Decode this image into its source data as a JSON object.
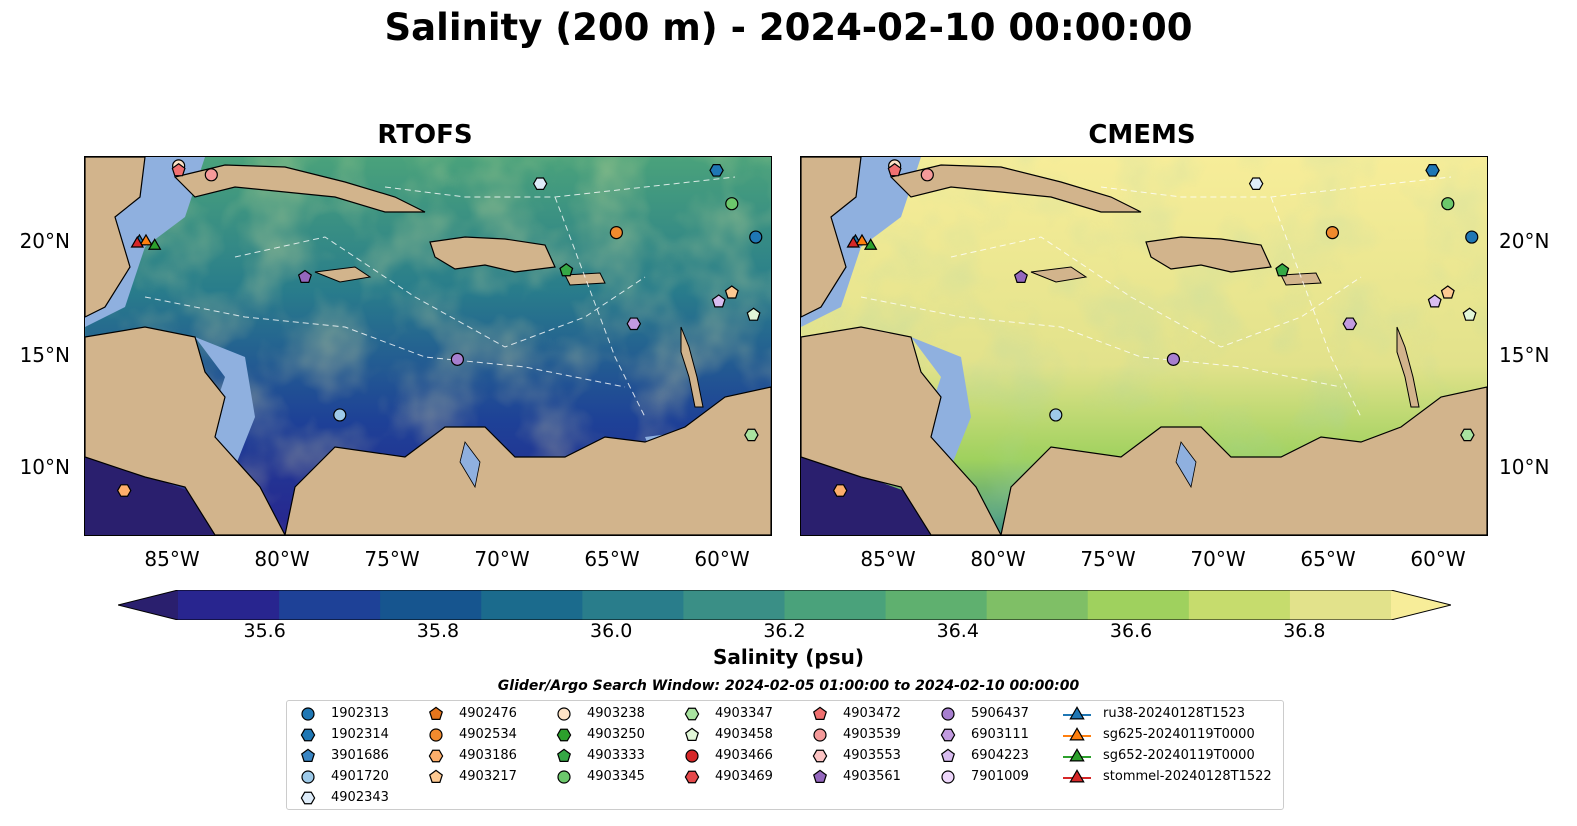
{
  "title": "Salinity (200 m) - 2024-02-10 00:00:00",
  "panels": [
    {
      "title": "RTOFS"
    },
    {
      "title": "CMEMS"
    }
  ],
  "x_ticks": [
    "85°W",
    "80°W",
    "75°W",
    "70°W",
    "65°W",
    "60°W"
  ],
  "y_ticks": [
    "20°N",
    "15°N",
    "10°N"
  ],
  "colorbar": {
    "label": "Salinity (psu)",
    "ticks": [
      "35.6",
      "35.8",
      "36.0",
      "36.2",
      "36.4",
      "36.6",
      "36.8"
    ],
    "colors": [
      "#2a1f6e",
      "#28258f",
      "#1e4197",
      "#16558f",
      "#1b6b8d",
      "#297d8b",
      "#3a8f86",
      "#4aa27b",
      "#5fb06f",
      "#7fbf66",
      "#9fd15e",
      "#c6dc6d",
      "#e2e28b",
      "#f7ed99"
    ]
  },
  "search_window": "Glider/Argo Search Window: 2024-02-05 01:00:00 to 2024-02-10 00:00:00",
  "legend": {
    "col1": [
      {
        "label": "1902313",
        "marker": "circle",
        "color": "#1f77b4"
      },
      {
        "label": "1902314",
        "marker": "hexagon",
        "color": "#1f77b4"
      },
      {
        "label": "3901686",
        "marker": "pentagon",
        "color": "#3a86c4"
      },
      {
        "label": "4901720",
        "marker": "circle",
        "color": "#9ecae9"
      },
      {
        "label": "4902343",
        "marker": "hexagon",
        "color": "#deecf9"
      }
    ],
    "col2": [
      {
        "label": "4902476",
        "marker": "pentagon",
        "color": "#e6751c"
      },
      {
        "label": "4902534",
        "marker": "circle",
        "color": "#f08a2e"
      },
      {
        "label": "4903186",
        "marker": "hexagon",
        "color": "#fdae6b"
      },
      {
        "label": "4903217",
        "marker": "pentagon",
        "color": "#fdc992"
      }
    ],
    "col3": [
      {
        "label": "4903238",
        "marker": "circle",
        "color": "#fde2c5"
      },
      {
        "label": "4903250",
        "marker": "hexagon",
        "color": "#2ca02c"
      },
      {
        "label": "4903333",
        "marker": "pentagon",
        "color": "#35a845"
      },
      {
        "label": "4903345",
        "marker": "circle",
        "color": "#6cc86c"
      }
    ],
    "col4": [
      {
        "label": "4903347",
        "marker": "hexagon",
        "color": "#a9e3a0"
      },
      {
        "label": "4903458",
        "marker": "pentagon",
        "color": "#e2f7d8"
      },
      {
        "label": "4903466",
        "marker": "circle",
        "color": "#d62728"
      },
      {
        "label": "4903469",
        "marker": "hexagon",
        "color": "#e5484a"
      }
    ],
    "col5": [
      {
        "label": "4903472",
        "marker": "pentagon",
        "color": "#f07070"
      },
      {
        "label": "4903539",
        "marker": "circle",
        "color": "#f59a9a"
      },
      {
        "label": "4903553",
        "marker": "hexagon",
        "color": "#fbc3c3"
      },
      {
        "label": "4903561",
        "marker": "pentagon",
        "color": "#9467bd"
      }
    ],
    "col6": [
      {
        "label": "5906437",
        "marker": "circle",
        "color": "#a77fcf"
      },
      {
        "label": "6903111",
        "marker": "hexagon",
        "color": "#c29be0"
      },
      {
        "label": "6904223",
        "marker": "pentagon",
        "color": "#d9bdf0"
      },
      {
        "label": "7901009",
        "marker": "circle",
        "color": "#eed7fb"
      }
    ],
    "col7": [
      {
        "label": "ru38-20240128T1523",
        "marker": "triangle",
        "color": "#1f77b4"
      },
      {
        "label": "sg625-20240119T0000",
        "marker": "triangle",
        "color": "#ff7f0e"
      },
      {
        "label": "sg652-20240119T0000",
        "marker": "triangle",
        "color": "#2ca02c"
      },
      {
        "label": "stommel-20240128T1522",
        "marker": "triangle",
        "color": "#d62728"
      }
    ]
  },
  "chart_data": {
    "type": "heatmap",
    "title": "Salinity (200 m) - 2024-02-10 00:00:00",
    "xlabel": "",
    "ylabel": "",
    "colorbar_label": "Salinity (psu)",
    "color_range": [
      35.5,
      36.9
    ],
    "x_range": [
      -89,
      -57.5
    ],
    "y_range": [
      7,
      24
    ],
    "x_ticks": [
      -85,
      -80,
      -75,
      -70,
      -65,
      -60
    ],
    "y_ticks": [
      20,
      15,
      10
    ],
    "panels": [
      "RTOFS",
      "CMEMS"
    ],
    "markers": [
      {
        "id": "1902313",
        "lon": -58.2,
        "lat": 20.4
      },
      {
        "id": "1902314",
        "lon": -60.0,
        "lat": 23.4
      },
      {
        "id": "4902534",
        "lon": -64.6,
        "lat": 20.6
      },
      {
        "id": "4903345",
        "lon": -59.3,
        "lat": 21.9
      },
      {
        "id": "4902343",
        "lon": -68.1,
        "lat": 22.8
      },
      {
        "id": "4903333",
        "lon": -66.9,
        "lat": 18.9
      },
      {
        "id": "4903561",
        "lon": -78.9,
        "lat": 18.6
      },
      {
        "id": "5906437",
        "lon": -71.9,
        "lat": 14.9
      },
      {
        "id": "6903111",
        "lon": -63.8,
        "lat": 16.5
      },
      {
        "id": "6904223",
        "lon": -59.9,
        "lat": 17.5
      },
      {
        "id": "4903217",
        "lon": -59.3,
        "lat": 17.9
      },
      {
        "id": "4903458",
        "lon": -58.3,
        "lat": 16.9
      },
      {
        "id": "4903347",
        "lon": -58.4,
        "lat": 11.5
      },
      {
        "id": "4901720",
        "lon": -77.3,
        "lat": 12.4
      },
      {
        "id": "4903186",
        "lon": -87.2,
        "lat": 9.0
      },
      {
        "id": "4903238",
        "lon": -84.7,
        "lat": 23.6
      },
      {
        "id": "4903472",
        "lon": -84.7,
        "lat": 23.4
      },
      {
        "id": "4903539",
        "lon": -83.2,
        "lat": 23.2
      },
      {
        "id": "ru38-20240128T1523",
        "lon": -86.5,
        "lat": 20.2
      },
      {
        "id": "sg625-20240119T0000",
        "lon": -86.2,
        "lat": 20.2
      },
      {
        "id": "sg652-20240119T0000",
        "lon": -85.8,
        "lat": 20.0
      },
      {
        "id": "stommel-20240128T1522",
        "lon": -86.6,
        "lat": 20.1
      }
    ]
  }
}
